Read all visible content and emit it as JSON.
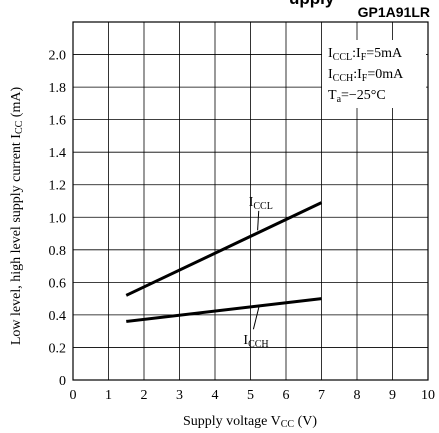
{
  "chart_data": {
    "type": "line",
    "header_fragment": "upply",
    "model": "GP1A91LR",
    "xlabel": {
      "main": "Supply voltage V",
      "sub": "CC",
      "unit": " (V)"
    },
    "ylabel": {
      "main": "Low level, high level supply current I",
      "sub": "CC",
      "unit": " (mA)"
    },
    "xlim": [
      0,
      10
    ],
    "ylim": [
      0,
      2.2
    ],
    "x_ticks": [
      0,
      1,
      2,
      3,
      4,
      5,
      6,
      7,
      8,
      9,
      10
    ],
    "x_tick_labels": [
      "0",
      "1",
      "2",
      "3",
      "4",
      "5",
      "6",
      "7",
      "8",
      "9",
      "10"
    ],
    "y_ticks": [
      0,
      0.2,
      0.4,
      0.6,
      0.8,
      1.0,
      1.2,
      1.4,
      1.6,
      1.8,
      2.0
    ],
    "y_tick_labels": [
      "0",
      "0.2",
      "0.4",
      "0.6",
      "0.8",
      "1.0",
      "1.2",
      "1.4",
      "1.6",
      "1.8",
      "2.0"
    ],
    "grid": true,
    "conditions": [
      {
        "a": "I",
        "a_sub": "CCL",
        "b": ":I",
        "b_sub": "F",
        "c": "=5mA"
      },
      {
        "a": "I",
        "a_sub": "CCH",
        "b": ":I",
        "b_sub": "F",
        "c": "=0mA"
      },
      {
        "a": "T",
        "a_sub": "a",
        "b": "=−25°C",
        "b_sub": "",
        "c": ""
      }
    ],
    "series": [
      {
        "name": "I",
        "name_sub": "CCL",
        "x": [
          1.5,
          7.0
        ],
        "y": [
          0.52,
          1.09
        ],
        "label_at": {
          "x": 5.2,
          "y": 0.92
        },
        "label_pos": {
          "x": 4.95,
          "y": 1.07
        }
      },
      {
        "name": "I",
        "name_sub": "CCH",
        "x": [
          1.5,
          7.0
        ],
        "y": [
          0.36,
          0.5
        ],
        "label_at": {
          "x": 5.25,
          "y": 0.46
        },
        "label_pos": {
          "x": 4.8,
          "y": 0.22
        }
      }
    ]
  }
}
